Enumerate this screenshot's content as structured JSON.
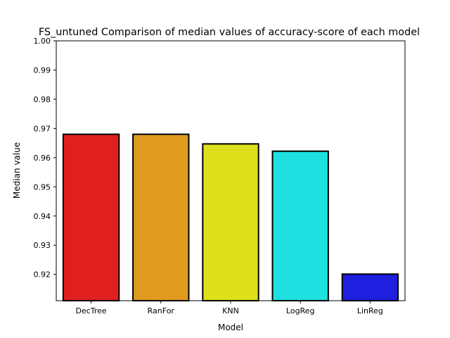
{
  "chart_data": {
    "type": "bar",
    "title": "FS_untuned Comparison of median values of accuracy-score of each model",
    "xlabel": "Model",
    "ylabel": "Median value",
    "categories": [
      "DecTree",
      "RanFor",
      "KNN",
      "LogReg",
      "LinReg"
    ],
    "values": [
      0.968,
      0.968,
      0.9647,
      0.9622,
      0.9201
    ],
    "colors": [
      "#e01f1f",
      "#e09b1f",
      "#dee01c",
      "#1ee0e0",
      "#1f1fe0"
    ],
    "ylim": [
      0.911,
      1.0
    ],
    "yticks": [
      "0.92",
      "0.93",
      "0.94",
      "0.95",
      "0.96",
      "0.97",
      "0.98",
      "0.99",
      "1.00"
    ],
    "grid": false,
    "legend": "none"
  }
}
